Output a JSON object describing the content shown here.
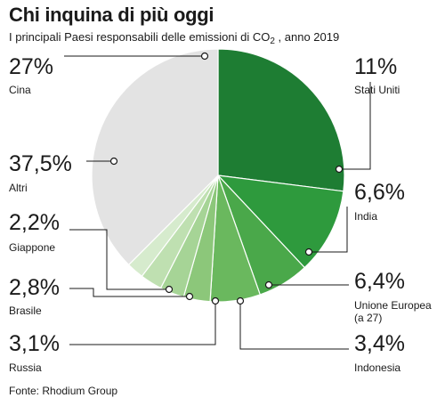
{
  "header": {
    "title": "Chi inquina di più oggi",
    "subtitle_prefix": "I principali Paesi responsabili delle emissioni di CO",
    "subtitle_sub": "2",
    "subtitle_suffix": " , anno 2019"
  },
  "footer": {
    "source": "Fonte: Rhodium Group"
  },
  "chart_data": {
    "type": "pie",
    "title": "Chi inquina di più oggi",
    "subtitle": "I principali Paesi responsabili delle emissioni di CO2 , anno 2019",
    "unit": "%",
    "slices": [
      {
        "name": "Cina",
        "value": 27,
        "label": "27%",
        "color": "#1e7d33"
      },
      {
        "name": "Stati Uniti",
        "value": 11,
        "label": "11%",
        "color": "#2e9a3d"
      },
      {
        "name": "India",
        "value": 6.6,
        "label": "6,6%",
        "color": "#4aa84a"
      },
      {
        "name": "Unione Europea (a 27)",
        "value": 6.4,
        "label": "6,4%",
        "color": "#6ab85e"
      },
      {
        "name": "Indonesia",
        "value": 3.4,
        "label": "3,4%",
        "color": "#8cc77a"
      },
      {
        "name": "Russia",
        "value": 3.1,
        "label": "3,1%",
        "color": "#a6d496"
      },
      {
        "name": "Brasile",
        "value": 2.8,
        "label": "2,8%",
        "color": "#bfe0b1"
      },
      {
        "name": "Giappone",
        "value": 2.2,
        "label": "2,2%",
        "color": "#d6ebcd"
      },
      {
        "name": "Altri",
        "value": 37.5,
        "label": "37,5%",
        "color": "#e3e3e3"
      }
    ],
    "label_line_color": "#1a1a1a",
    "source": "Fonte: Rhodium Group"
  }
}
